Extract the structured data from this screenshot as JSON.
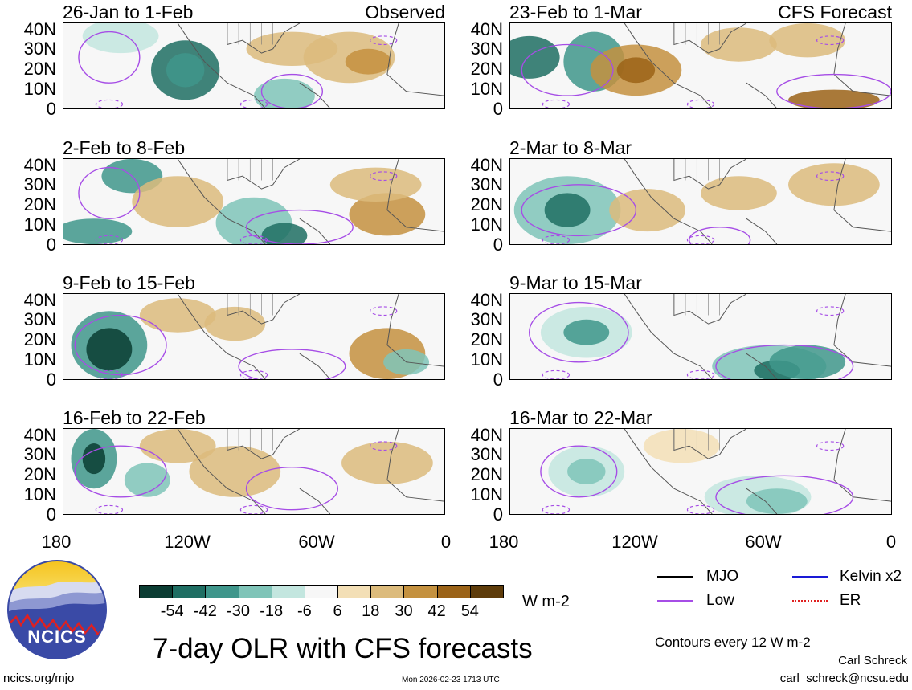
{
  "panels": [
    {
      "title": "26-Jan to 1-Feb",
      "label": "Observed",
      "type": "observed"
    },
    {
      "title": "23-Feb to 1-Mar",
      "label": "CFS Forecast",
      "type": "forecast"
    },
    {
      "title": "2-Feb to 8-Feb",
      "label": "",
      "type": "observed"
    },
    {
      "title": "2-Mar to 8-Mar",
      "label": "",
      "type": "forecast"
    },
    {
      "title": "9-Feb to 15-Feb",
      "label": "",
      "type": "observed"
    },
    {
      "title": "9-Mar to 15-Mar",
      "label": "",
      "type": "forecast"
    },
    {
      "title": "16-Feb to 22-Feb",
      "label": "",
      "type": "observed"
    },
    {
      "title": "16-Mar to 22-Mar",
      "label": "",
      "type": "forecast"
    }
  ],
  "lat_labels": [
    "40N",
    "30N",
    "20N",
    "10N",
    "0"
  ],
  "lon_labels": [
    "180",
    "120W",
    "60W",
    "0"
  ],
  "colorbar": {
    "ticks": [
      "-54",
      "-42",
      "-30",
      "-18",
      "-6",
      "6",
      "18",
      "30",
      "42",
      "54"
    ],
    "colors": [
      "#0b3d33",
      "#1f6e63",
      "#3f968b",
      "#7fc4b8",
      "#c3e6df",
      "#f7f7f7",
      "#f3dfb6",
      "#dcbb7c",
      "#c4913f",
      "#9b6318",
      "#5e3c0a"
    ],
    "units": "W m-2"
  },
  "legend": {
    "items": [
      {
        "label": "MJO",
        "color": "#000000"
      },
      {
        "label": "Kelvin x2",
        "color": "#1a1ad6"
      },
      {
        "label": "Low",
        "color": "#a64de6"
      },
      {
        "label": "ER",
        "color": "#e02020"
      }
    ],
    "contour_note": "Contours every 12 W m-2"
  },
  "main_title": "7-day OLR with CFS forecasts",
  "logo_text": "NCICS",
  "footer": {
    "website": "ncics.org/mjo",
    "timestamp": "Mon 2026-02-23 1713 UTC",
    "author": "Carl Schreck",
    "email": "carl_schreck@ncsu.edu"
  }
}
